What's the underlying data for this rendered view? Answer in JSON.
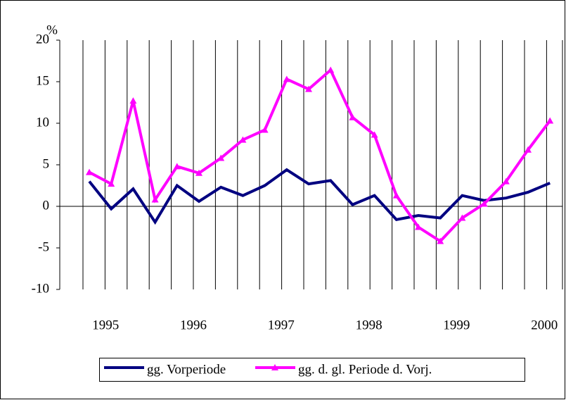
{
  "chart_data": {
    "type": "line",
    "y_label": "%",
    "categories": [
      null,
      "1995",
      null,
      null,
      null,
      "1996",
      null,
      null,
      null,
      "1997",
      null,
      null,
      null,
      "1998",
      null,
      null,
      null,
      "1999",
      null,
      null,
      null,
      "2000"
    ],
    "series": [
      {
        "name": "gg. Vorperiode",
        "color": "#000080",
        "marker": "none",
        "values": [
          3.0,
          -0.3,
          2.1,
          -1.9,
          2.5,
          0.6,
          2.3,
          1.3,
          2.5,
          4.4,
          2.7,
          3.1,
          0.2,
          1.3,
          -1.6,
          -1.1,
          -1.4,
          1.3,
          0.7,
          1.0,
          1.7,
          2.8
        ]
      },
      {
        "name": "gg. d. gl. Periode d. Vorj.",
        "color": "#ff00ff",
        "marker": "triangle",
        "values": [
          4.1,
          2.7,
          12.7,
          0.8,
          4.8,
          4.0,
          5.8,
          8.0,
          9.2,
          15.3,
          14.1,
          16.4,
          10.7,
          8.6,
          1.3,
          -2.5,
          -4.2,
          -1.4,
          0.3,
          3.0,
          6.8,
          10.3
        ]
      }
    ],
    "ylim": [
      -10,
      20
    ],
    "yticks": [
      -10,
      -5,
      0,
      5,
      10,
      15,
      20
    ]
  }
}
